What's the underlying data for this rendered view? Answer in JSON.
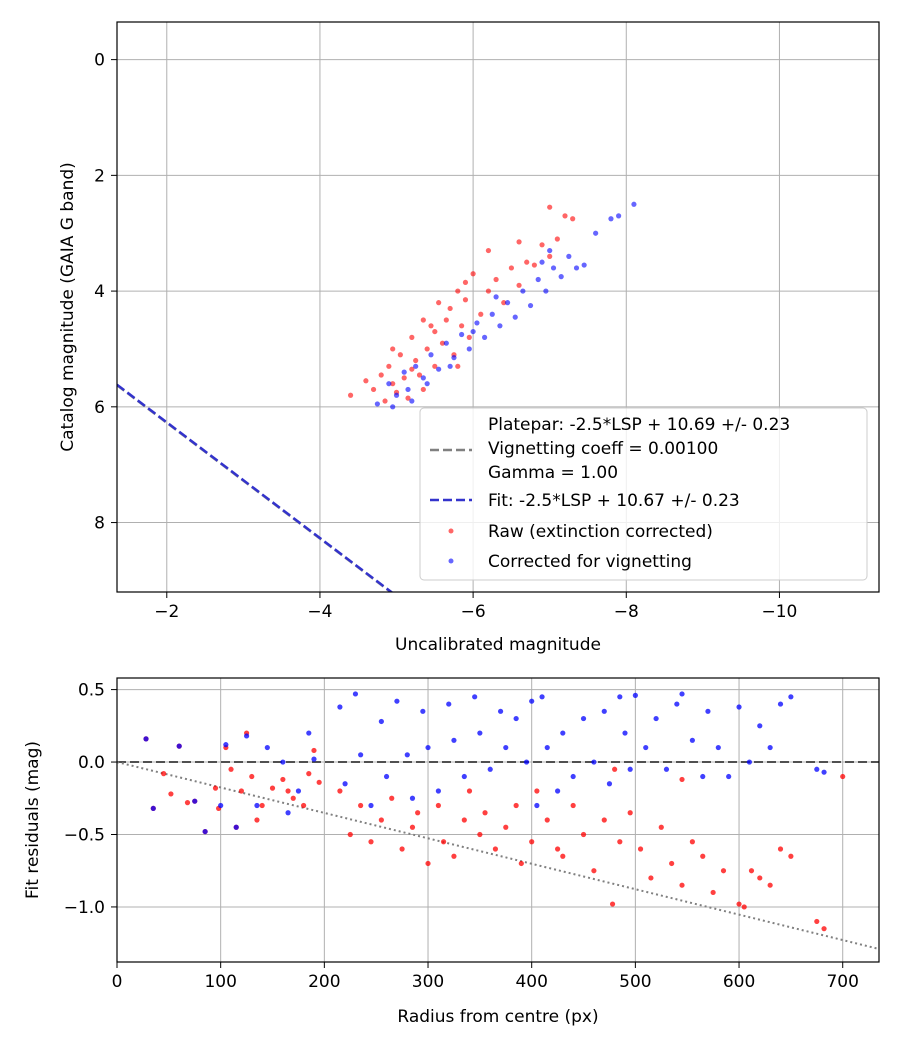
{
  "chart_data": [
    {
      "type": "scatter",
      "xlabel": "Uncalibrated magnitude",
      "ylabel": "Catalog magnitude (GAIA G band)",
      "xlim": [
        -1.35,
        -11.3
      ],
      "ylim": [
        9.2,
        -0.65
      ],
      "x_inverted": true,
      "y_inverted": true,
      "xticks": [
        -2,
        -4,
        -6,
        -8,
        -10
      ],
      "xtick_labels": [
        "−2",
        "−4",
        "−6",
        "−8",
        "−10"
      ],
      "yticks": [
        0,
        2,
        4,
        6,
        8
      ],
      "ytick_labels": [
        "0",
        "2",
        "4",
        "6",
        "8"
      ],
      "grid": true,
      "legend_position": "lower-right",
      "lines": [
        {
          "name_lines": [
            "Platepar: -2.5*LSP + 10.69 +/- 0.23",
            "Vignetting coeff = 0.00100",
            "Gamma = 1.00"
          ],
          "style": "dashed",
          "color": "#808080",
          "slope": -1,
          "intercept": 4.276
        },
        {
          "name_lines": [
            "Fit: -2.5*LSP + 10.67 +/- 0.23"
          ],
          "style": "dashed",
          "color": "#3333cc",
          "slope": -1,
          "intercept": 4.268
        }
      ],
      "series": [
        {
          "name": "Raw (extinction corrected)",
          "color": "#ff0000",
          "points": [
            [
              -4.4,
              5.8
            ],
            [
              -4.6,
              5.55
            ],
            [
              -4.7,
              5.7
            ],
            [
              -4.8,
              5.45
            ],
            [
              -4.85,
              5.9
            ],
            [
              -4.9,
              5.3
            ],
            [
              -4.95,
              5.6
            ],
            [
              -5.0,
              5.75
            ],
            [
              -5.05,
              5.1
            ],
            [
              -5.1,
              5.5
            ],
            [
              -5.15,
              5.85
            ],
            [
              -5.2,
              4.8
            ],
            [
              -5.25,
              5.2
            ],
            [
              -5.3,
              5.45
            ],
            [
              -5.35,
              4.5
            ],
            [
              -5.4,
              5.0
            ],
            [
              -5.45,
              4.6
            ],
            [
              -5.5,
              5.3
            ],
            [
              -5.55,
              4.2
            ],
            [
              -5.6,
              4.9
            ],
            [
              -5.65,
              4.5
            ],
            [
              -5.7,
              4.3
            ],
            [
              -5.75,
              5.1
            ],
            [
              -5.8,
              4.0
            ],
            [
              -5.85,
              4.6
            ],
            [
              -5.9,
              4.15
            ],
            [
              -5.95,
              4.8
            ],
            [
              -6.0,
              3.7
            ],
            [
              -6.1,
              4.4
            ],
            [
              -6.2,
              4.0
            ],
            [
              -6.3,
              3.8
            ],
            [
              -6.4,
              4.2
            ],
            [
              -6.5,
              3.6
            ],
            [
              -6.6,
              3.9
            ],
            [
              -6.7,
              3.5
            ],
            [
              -6.8,
              3.55
            ],
            [
              -6.9,
              3.2
            ],
            [
              -7.0,
              3.4
            ],
            [
              -7.1,
              3.1
            ],
            [
              -7.2,
              2.7
            ],
            [
              -7.3,
              2.75
            ],
            [
              -7.0,
              2.55
            ],
            [
              -6.6,
              3.15
            ],
            [
              -6.2,
              3.3
            ],
            [
              -5.9,
              3.85
            ],
            [
              -5.5,
              4.7
            ],
            [
              -5.2,
              5.35
            ],
            [
              -4.95,
              5.0
            ],
            [
              -5.35,
              5.7
            ],
            [
              -5.8,
              5.3
            ]
          ]
        },
        {
          "name": "Corrected for vignetting",
          "color": "#0000ff",
          "points": [
            [
              -4.75,
              5.95
            ],
            [
              -4.9,
              5.6
            ],
            [
              -5.0,
              5.8
            ],
            [
              -5.1,
              5.4
            ],
            [
              -5.15,
              5.7
            ],
            [
              -5.25,
              5.3
            ],
            [
              -5.35,
              5.5
            ],
            [
              -5.45,
              5.1
            ],
            [
              -5.55,
              5.35
            ],
            [
              -5.65,
              4.9
            ],
            [
              -5.75,
              5.15
            ],
            [
              -5.85,
              4.75
            ],
            [
              -5.95,
              5.0
            ],
            [
              -6.05,
              4.55
            ],
            [
              -6.15,
              4.8
            ],
            [
              -6.25,
              4.4
            ],
            [
              -6.35,
              4.6
            ],
            [
              -6.45,
              4.2
            ],
            [
              -6.55,
              4.45
            ],
            [
              -6.65,
              4.0
            ],
            [
              -6.75,
              4.25
            ],
            [
              -6.85,
              3.8
            ],
            [
              -6.95,
              4.0
            ],
            [
              -7.05,
              3.6
            ],
            [
              -7.15,
              3.75
            ],
            [
              -7.25,
              3.4
            ],
            [
              -7.35,
              3.6
            ],
            [
              -7.45,
              3.55
            ],
            [
              -7.6,
              3.0
            ],
            [
              -7.8,
              2.75
            ],
            [
              -7.9,
              2.7
            ],
            [
              -8.1,
              2.5
            ],
            [
              -6.9,
              3.5
            ],
            [
              -7.0,
              3.3
            ],
            [
              -6.3,
              4.1
            ],
            [
              -6.0,
              4.7
            ],
            [
              -5.7,
              5.3
            ],
            [
              -5.4,
              5.6
            ],
            [
              -5.2,
              5.9
            ],
            [
              -4.95,
              6.0
            ]
          ]
        }
      ]
    },
    {
      "type": "scatter",
      "xlabel": "Radius from centre (px)",
      "ylabel": "Fit residuals (mag)",
      "xlim": [
        0,
        735
      ],
      "ylim": [
        -1.38,
        0.58
      ],
      "xticks": [
        0,
        100,
        200,
        300,
        400,
        500,
        600,
        700
      ],
      "xtick_labels": [
        "0",
        "100",
        "200",
        "300",
        "400",
        "500",
        "600",
        "700"
      ],
      "yticks": [
        0.5,
        0.0,
        -0.5,
        -1.0
      ],
      "ytick_labels": [
        "0.5",
        "0.0",
        "−0.5",
        "−1.0"
      ],
      "grid": true,
      "reference_lines": [
        {
          "kind": "horizontal",
          "y": 0,
          "style": "dashed",
          "color": "#505050"
        },
        {
          "kind": "trend",
          "x": [
            0,
            735
          ],
          "y": [
            0,
            -1.29
          ],
          "style": "dotted",
          "color": "#808080"
        }
      ],
      "series": [
        {
          "name": "Raw (extinction corrected)",
          "color": "#ff0000",
          "points": [
            [
              28,
              0.16
            ],
            [
              35,
              -0.32
            ],
            [
              45,
              -0.08
            ],
            [
              52,
              -0.22
            ],
            [
              60,
              0.11
            ],
            [
              68,
              -0.28
            ],
            [
              75,
              -0.27
            ],
            [
              85,
              -0.48
            ],
            [
              95,
              -0.18
            ],
            [
              98,
              -0.32
            ],
            [
              105,
              0.1
            ],
            [
              110,
              -0.05
            ],
            [
              115,
              -0.45
            ],
            [
              120,
              -0.2
            ],
            [
              125,
              0.2
            ],
            [
              130,
              -0.1
            ],
            [
              135,
              -0.4
            ],
            [
              140,
              -0.3
            ],
            [
              150,
              -0.18
            ],
            [
              160,
              -0.12
            ],
            [
              165,
              -0.2
            ],
            [
              170,
              -0.25
            ],
            [
              180,
              -0.3
            ],
            [
              185,
              -0.08
            ],
            [
              190,
              0.08
            ],
            [
              195,
              -0.14
            ],
            [
              215,
              -0.2
            ],
            [
              225,
              -0.5
            ],
            [
              235,
              -0.3
            ],
            [
              245,
              -0.55
            ],
            [
              255,
              -0.4
            ],
            [
              265,
              -0.25
            ],
            [
              275,
              -0.6
            ],
            [
              285,
              -0.45
            ],
            [
              290,
              -0.35
            ],
            [
              300,
              -0.7
            ],
            [
              310,
              -0.3
            ],
            [
              315,
              -0.55
            ],
            [
              325,
              -0.65
            ],
            [
              335,
              -0.4
            ],
            [
              340,
              -0.2
            ],
            [
              350,
              -0.5
            ],
            [
              355,
              -0.35
            ],
            [
              365,
              -0.6
            ],
            [
              375,
              -0.45
            ],
            [
              385,
              -0.3
            ],
            [
              390,
              -0.7
            ],
            [
              400,
              -0.55
            ],
            [
              405,
              -0.2
            ],
            [
              415,
              -0.4
            ],
            [
              425,
              -0.6
            ],
            [
              430,
              -0.65
            ],
            [
              440,
              -0.3
            ],
            [
              450,
              -0.5
            ],
            [
              460,
              -0.75
            ],
            [
              470,
              -0.4
            ],
            [
              478,
              -0.98
            ],
            [
              485,
              -0.55
            ],
            [
              495,
              -0.35
            ],
            [
              505,
              -0.6
            ],
            [
              515,
              -0.8
            ],
            [
              525,
              -0.45
            ],
            [
              535,
              -0.7
            ],
            [
              545,
              -0.85
            ],
            [
              555,
              -0.55
            ],
            [
              565,
              -0.65
            ],
            [
              575,
              -0.9
            ],
            [
              585,
              -0.75
            ],
            [
              600,
              -0.98
            ],
            [
              605,
              -1.0
            ],
            [
              612,
              -0.75
            ],
            [
              620,
              -0.8
            ],
            [
              630,
              -0.85
            ],
            [
              640,
              -0.6
            ],
            [
              650,
              -0.65
            ],
            [
              675,
              -1.1
            ],
            [
              682,
              -1.15
            ],
            [
              700,
              -0.1
            ],
            [
              545,
              -0.12
            ],
            [
              480,
              -0.05
            ]
          ]
        },
        {
          "name": "Corrected for vignetting",
          "color": "#0000ff",
          "points": [
            [
              28,
              0.16
            ],
            [
              35,
              -0.32
            ],
            [
              60,
              0.11
            ],
            [
              75,
              -0.27
            ],
            [
              85,
              -0.48
            ],
            [
              100,
              -0.3
            ],
            [
              105,
              0.12
            ],
            [
              115,
              -0.45
            ],
            [
              125,
              0.18
            ],
            [
              135,
              -0.3
            ],
            [
              145,
              0.1
            ],
            [
              160,
              0.0
            ],
            [
              165,
              -0.35
            ],
            [
              175,
              -0.2
            ],
            [
              185,
              0.2
            ],
            [
              190,
              0.02
            ],
            [
              215,
              0.38
            ],
            [
              220,
              -0.15
            ],
            [
              230,
              0.47
            ],
            [
              235,
              0.05
            ],
            [
              245,
              -0.3
            ],
            [
              255,
              0.28
            ],
            [
              260,
              -0.1
            ],
            [
              270,
              0.42
            ],
            [
              280,
              0.05
            ],
            [
              285,
              -0.25
            ],
            [
              295,
              0.35
            ],
            [
              300,
              0.1
            ],
            [
              310,
              -0.2
            ],
            [
              320,
              0.4
            ],
            [
              325,
              0.15
            ],
            [
              335,
              -0.1
            ],
            [
              345,
              0.45
            ],
            [
              350,
              0.2
            ],
            [
              360,
              -0.05
            ],
            [
              370,
              0.35
            ],
            [
              375,
              0.1
            ],
            [
              385,
              0.3
            ],
            [
              395,
              0.0
            ],
            [
              400,
              0.42
            ],
            [
              405,
              -0.3
            ],
            [
              410,
              0.45
            ],
            [
              415,
              0.1
            ],
            [
              425,
              -0.2
            ],
            [
              430,
              0.2
            ],
            [
              440,
              -0.1
            ],
            [
              450,
              0.3
            ],
            [
              460,
              0.0
            ],
            [
              470,
              0.35
            ],
            [
              475,
              -0.15
            ],
            [
              485,
              0.45
            ],
            [
              490,
              0.2
            ],
            [
              495,
              -0.05
            ],
            [
              500,
              0.46
            ],
            [
              510,
              0.1
            ],
            [
              520,
              0.3
            ],
            [
              530,
              -0.05
            ],
            [
              540,
              0.4
            ],
            [
              545,
              0.47
            ],
            [
              555,
              0.15
            ],
            [
              565,
              -0.1
            ],
            [
              570,
              0.35
            ],
            [
              580,
              0.1
            ],
            [
              590,
              -0.1
            ],
            [
              600,
              0.38
            ],
            [
              610,
              0.0
            ],
            [
              620,
              0.25
            ],
            [
              630,
              0.1
            ],
            [
              640,
              0.4
            ],
            [
              650,
              0.45
            ],
            [
              675,
              -0.05
            ],
            [
              682,
              -0.07
            ]
          ]
        }
      ]
    }
  ]
}
